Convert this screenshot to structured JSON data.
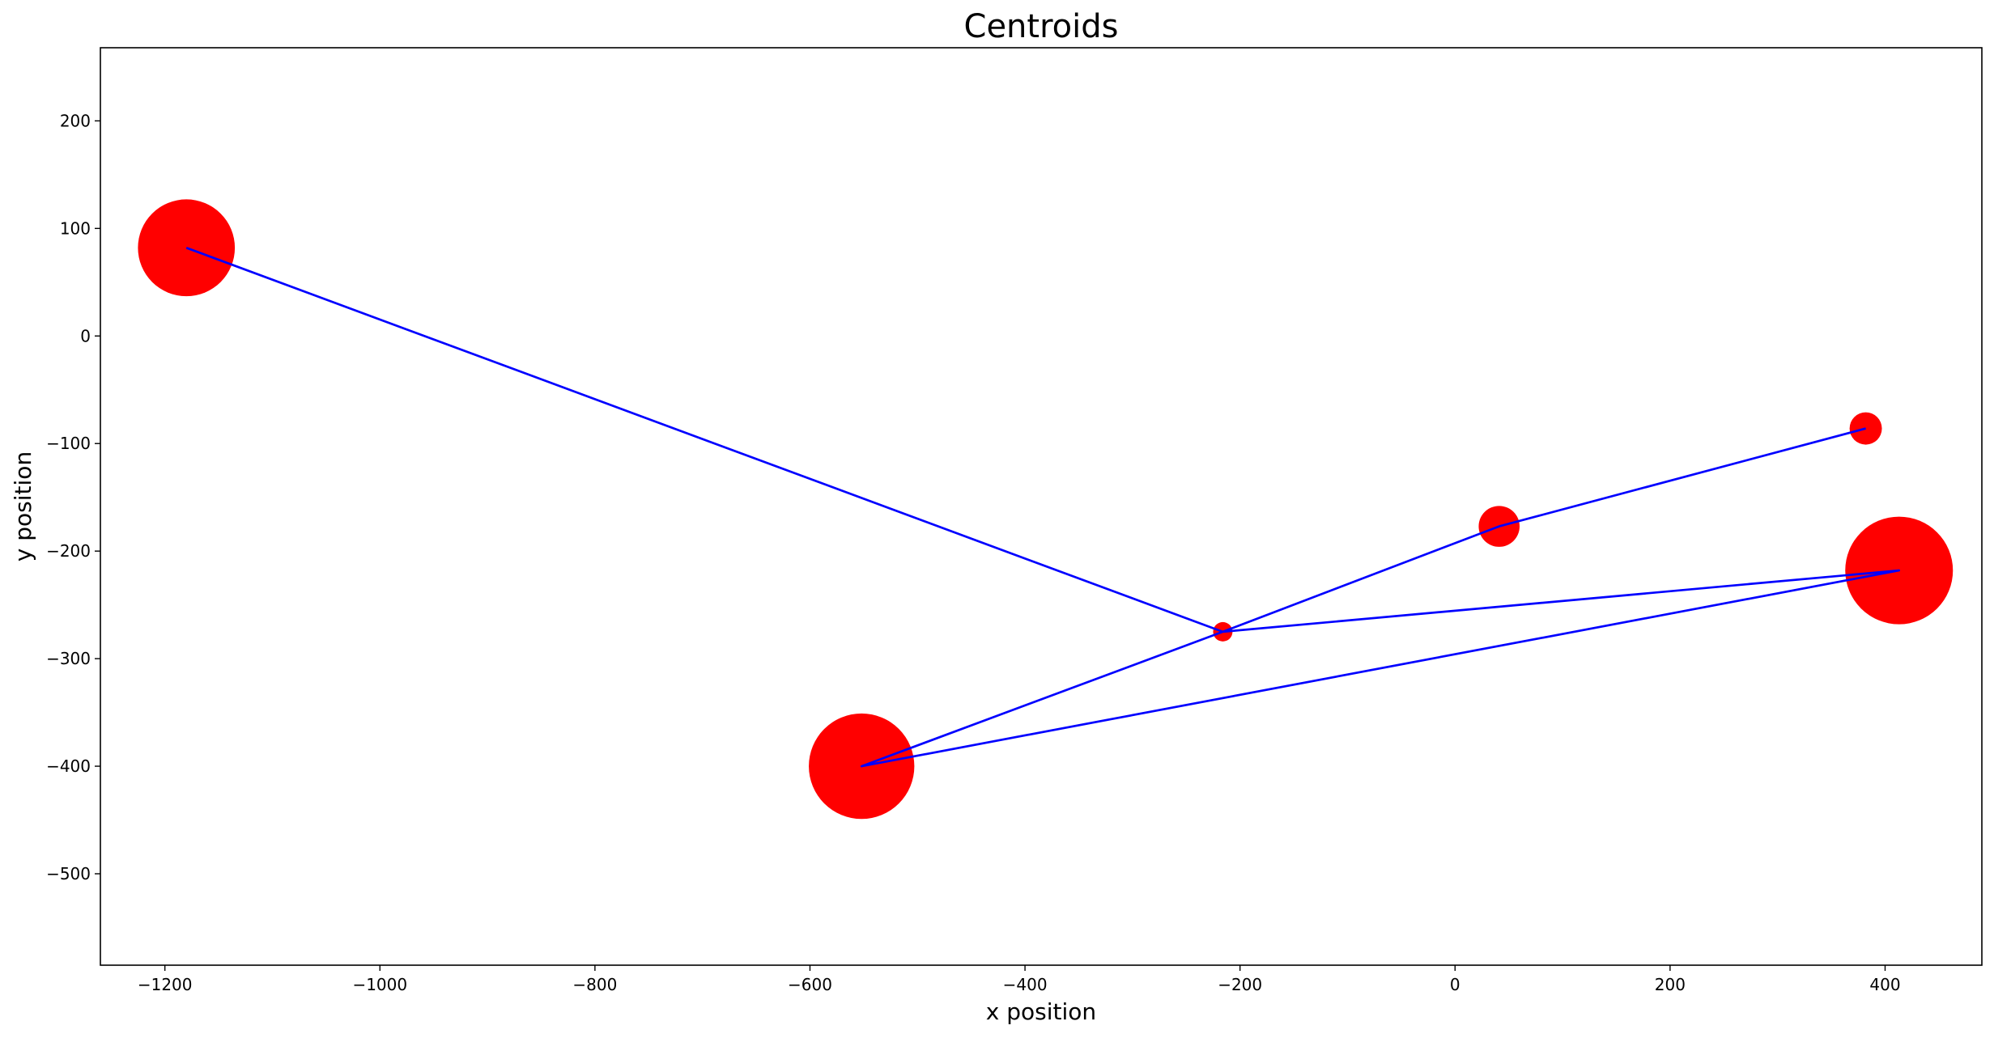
{
  "chart_data": {
    "type": "scatter",
    "title": "Centroids",
    "xlabel": "x position",
    "ylabel": "y position",
    "xlim": [
      -1260,
      490
    ],
    "ylim": [
      -585,
      268
    ],
    "xticks": [
      -1200,
      -1000,
      -800,
      -600,
      -400,
      -200,
      0,
      200,
      400
    ],
    "xtick_labels": [
      "−1200",
      "−1000",
      "−800",
      "−600",
      "−400",
      "−200",
      "0",
      "200",
      "400"
    ],
    "yticks": [
      200,
      100,
      0,
      -100,
      -200,
      -300,
      -400,
      -500
    ],
    "ytick_labels": [
      "200",
      "100",
      "0",
      "−100",
      "−200",
      "−300",
      "−400",
      "−500"
    ],
    "grid": false,
    "legend": "none",
    "marker_color": "#ff0000",
    "line_color": "#0000ff",
    "points": [
      {
        "x": -1180,
        "y": 82,
        "size": 45
      },
      {
        "x": -216,
        "y": -275,
        "size": 9
      },
      {
        "x": 41,
        "y": -177,
        "size": 19
      },
      {
        "x": 382,
        "y": -86,
        "size": 15
      },
      {
        "x": 413,
        "y": -218,
        "size": 50
      },
      {
        "x": -552,
        "y": -400,
        "size": 49
      }
    ],
    "path": [
      [
        -1180,
        82
      ],
      [
        -216,
        -275
      ],
      [
        413,
        -218
      ],
      [
        -552,
        -400
      ],
      [
        -216,
        -275
      ],
      [
        41,
        -177
      ],
      [
        382,
        -86
      ]
    ]
  }
}
